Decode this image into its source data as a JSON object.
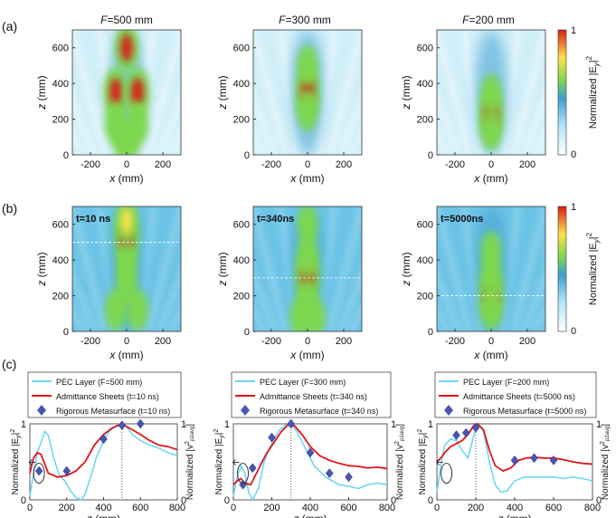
{
  "figure": {
    "row_labels": [
      "(a)",
      "(b)",
      "(c)"
    ],
    "focal_titles": [
      {
        "italic": "F",
        "rest": "=500 mm"
      },
      {
        "italic": "F",
        "rest": "=300 mm"
      },
      {
        "italic": "F",
        "rest": "=200 mm"
      }
    ],
    "colorbar": {
      "label": "Normalized |E",
      "label_sub": "y",
      "label_tail": "|",
      "label_sup": "2",
      "ticks": [
        "1",
        "0"
      ]
    },
    "colors": {
      "hot": "#d81c13",
      "warm": "#ffe14a",
      "mid": "#7ed84e",
      "cool": "#3c9fd1",
      "cold": "#ffffff",
      "pec": "#6fd6f0",
      "sheet": "#e0141b",
      "meta": "#4a55b3"
    }
  },
  "chart_data": [
    {
      "type": "heatmap",
      "id": "a1",
      "title": "F=500 mm",
      "xlabel": "x (mm)",
      "ylabel": "z (mm)",
      "xticks": [
        -200,
        0,
        200
      ],
      "yticks": [
        0,
        200,
        400,
        600
      ],
      "xlim": [
        -300,
        300
      ],
      "ylim": [
        0,
        700
      ],
      "hotspots": [
        [
          -60,
          350,
          1.0
        ],
        [
          60,
          350,
          1.0
        ],
        [
          0,
          600,
          0.9
        ],
        [
          -60,
          180,
          0.6
        ],
        [
          60,
          180,
          0.6
        ],
        [
          -20,
          90,
          0.5
        ],
        [
          20,
          90,
          0.5
        ]
      ]
    },
    {
      "type": "heatmap",
      "id": "a2",
      "title": "F=300 mm",
      "xlabel": "x (mm)",
      "ylabel": "z (mm)",
      "xticks": [
        -200,
        0,
        200
      ],
      "yticks": [
        0,
        200,
        400,
        600
      ],
      "xlim": [
        -300,
        300
      ],
      "ylim": [
        0,
        700
      ],
      "hotspots": [
        [
          0,
          360,
          1.0
        ],
        [
          0,
          250,
          0.55
        ],
        [
          0,
          500,
          0.5
        ]
      ]
    },
    {
      "type": "heatmap",
      "id": "a3",
      "title": "F=200 mm",
      "xlabel": "x (mm)",
      "ylabel": "z (mm)",
      "xticks": [
        -200,
        0,
        200
      ],
      "yticks": [
        0,
        200,
        400,
        600
      ],
      "xlim": [
        -300,
        300
      ],
      "ylim": [
        0,
        700
      ],
      "hotspots": [
        [
          0,
          230,
          1.0
        ],
        [
          0,
          140,
          0.5
        ],
        [
          0,
          340,
          0.45
        ]
      ]
    },
    {
      "type": "heatmap",
      "id": "b1",
      "time_label": "t=10 ns",
      "xlabel": "x (mm)",
      "ylabel": "z (mm)",
      "xticks": [
        -200,
        0,
        200
      ],
      "yticks": [
        0,
        200,
        400,
        600
      ],
      "xlim": [
        -300,
        300
      ],
      "ylim": [
        0,
        700
      ],
      "focus_line": 500,
      "hotspots": [
        [
          0,
          520,
          1.0
        ],
        [
          0,
          620,
          0.8
        ],
        [
          0,
          380,
          0.55
        ],
        [
          -60,
          120,
          0.55
        ],
        [
          60,
          120,
          0.55
        ],
        [
          0,
          250,
          0.5
        ]
      ]
    },
    {
      "type": "heatmap",
      "id": "b2",
      "time_label": "t=340ns",
      "xlabel": "x (mm)",
      "ylabel": "z (mm)",
      "xticks": [
        -200,
        0,
        200
      ],
      "yticks": [
        0,
        200,
        400,
        600
      ],
      "xlim": [
        -300,
        300
      ],
      "ylim": [
        0,
        700
      ],
      "focus_line": 300,
      "hotspots": [
        [
          0,
          310,
          1.0
        ],
        [
          0,
          420,
          0.65
        ],
        [
          0,
          180,
          0.55
        ],
        [
          0,
          600,
          0.45
        ],
        [
          -40,
          80,
          0.45
        ],
        [
          40,
          80,
          0.45
        ]
      ]
    },
    {
      "type": "heatmap",
      "id": "b3",
      "time_label": "t=5000ns",
      "xlabel": "x (mm)",
      "ylabel": "z (mm)",
      "xticks": [
        -200,
        0,
        200
      ],
      "yticks": [
        0,
        200,
        400,
        600
      ],
      "xlim": [
        -300,
        300
      ],
      "ylim": [
        0,
        700
      ],
      "focus_line": 200,
      "hotspots": [
        [
          0,
          200,
          0.9
        ],
        [
          0,
          300,
          0.6
        ],
        [
          0,
          120,
          0.5
        ],
        [
          0,
          450,
          0.45
        ]
      ]
    },
    {
      "type": "line",
      "id": "c1",
      "xlabel": "z (mm)",
      "ylabel_left": "Normalized |E",
      "ylabel_right": "Normalized [v",
      "xticks": [
        0,
        200,
        400,
        600,
        800
      ],
      "xlim": [
        0,
        800
      ],
      "ylim": [
        0,
        1
      ],
      "focus": 500,
      "legend": [
        "PEC Layer (F=500 mm)",
        "Admittance Sheets (t=10 ns)",
        "Rigorous Metasurface (t=10 ns)"
      ],
      "series": [
        {
          "name": "PEC Layer",
          "x": [
            0,
            20,
            40,
            60,
            80,
            100,
            130,
            160,
            190,
            220,
            250,
            280,
            300,
            330,
            360,
            400,
            430,
            460,
            490,
            520,
            560,
            600,
            650,
            700,
            750,
            800
          ],
          "y": [
            0.05,
            0.35,
            0.62,
            0.75,
            0.9,
            0.85,
            0.55,
            0.32,
            0.25,
            0.12,
            0.03,
            0.0,
            0.08,
            0.3,
            0.55,
            0.78,
            0.9,
            0.96,
            1.0,
            0.97,
            0.85,
            0.78,
            0.72,
            0.68,
            0.62,
            0.58
          ]
        },
        {
          "name": "Admittance Sheets",
          "x": [
            0,
            20,
            40,
            60,
            80,
            100,
            150,
            200,
            250,
            300,
            350,
            400,
            450,
            500,
            550,
            600,
            650,
            700,
            750,
            800
          ],
          "y": [
            0.35,
            0.55,
            0.62,
            0.6,
            0.48,
            0.35,
            0.3,
            0.32,
            0.38,
            0.5,
            0.72,
            0.86,
            0.95,
            1.0,
            0.93,
            0.86,
            0.78,
            0.72,
            0.7,
            0.66
          ]
        },
        {
          "name": "Rigorous Metasurface",
          "x": [
            50,
            200,
            400,
            500,
            600
          ],
          "y": [
            0.38,
            0.38,
            0.8,
            0.98,
            1.0
          ]
        }
      ]
    },
    {
      "type": "line",
      "id": "c2",
      "xlabel": "z (mm)",
      "ylabel_left": "Normalized |E",
      "ylabel_right": "Normalized [v",
      "xticks": [
        0,
        200,
        400,
        600,
        800
      ],
      "xlim": [
        0,
        800
      ],
      "ylim": [
        0,
        1
      ],
      "focus": 300,
      "legend": [
        "PEC Layer (F=300 mm)",
        "Admittance Sheets (t=340 ns)",
        "Rigorous Metasurface (t=340 ns)"
      ],
      "series": [
        {
          "name": "PEC Layer",
          "x": [
            0,
            20,
            40,
            60,
            80,
            100,
            130,
            160,
            200,
            240,
            270,
            300,
            330,
            370,
            420,
            480,
            550,
            600,
            650,
            700,
            750,
            800
          ],
          "y": [
            0.05,
            0.3,
            0.45,
            0.35,
            0.1,
            0.0,
            0.15,
            0.5,
            0.75,
            0.92,
            0.98,
            1.0,
            0.9,
            0.7,
            0.45,
            0.3,
            0.2,
            0.18,
            0.15,
            0.2,
            0.22,
            0.2
          ]
        },
        {
          "name": "Admittance Sheets",
          "x": [
            0,
            20,
            40,
            60,
            90,
            130,
            170,
            210,
            250,
            290,
            320,
            360,
            400,
            450,
            500,
            550,
            600,
            650,
            700,
            750,
            800
          ],
          "y": [
            0.2,
            0.25,
            0.28,
            0.22,
            0.2,
            0.4,
            0.6,
            0.75,
            0.9,
            1.0,
            0.97,
            0.85,
            0.7,
            0.58,
            0.52,
            0.48,
            0.45,
            0.44,
            0.42,
            0.43,
            0.41
          ]
        },
        {
          "name": "Rigorous Metasurface",
          "x": [
            50,
            100,
            200,
            300,
            400,
            500,
            600
          ],
          "y": [
            0.2,
            0.42,
            0.82,
            1.0,
            0.62,
            0.35,
            0.3
          ]
        }
      ]
    },
    {
      "type": "line",
      "id": "c3",
      "xlabel": "z (mm)",
      "ylabel_left": "Normalized |E",
      "ylabel_right": "Normalized [v",
      "xticks": [
        0,
        200,
        400,
        600,
        800
      ],
      "xlim": [
        0,
        800
      ],
      "ylim": [
        0,
        1
      ],
      "focus": 200,
      "legend": [
        "PEC Layer (F=200 mm)",
        "Admittance Sheets (t=5000 ns)",
        "Rigorous Metasurface (t=5000 ns)"
      ],
      "series": [
        {
          "name": "PEC Layer",
          "x": [
            0,
            20,
            40,
            70,
            100,
            130,
            160,
            190,
            210,
            240,
            270,
            300,
            330,
            360,
            400,
            450,
            500,
            550,
            600,
            650,
            700,
            750,
            800
          ],
          "y": [
            0.1,
            0.45,
            0.72,
            0.8,
            0.78,
            0.65,
            0.55,
            0.85,
            1.0,
            0.9,
            0.5,
            0.2,
            0.1,
            0.12,
            0.25,
            0.3,
            0.3,
            0.3,
            0.3,
            0.28,
            0.3,
            0.28,
            0.25
          ]
        },
        {
          "name": "Admittance Sheets",
          "x": [
            0,
            20,
            40,
            70,
            100,
            130,
            160,
            190,
            210,
            240,
            270,
            300,
            340,
            380,
            420,
            460,
            500,
            550,
            600,
            650,
            700,
            750,
            800
          ],
          "y": [
            0.5,
            0.55,
            0.62,
            0.7,
            0.74,
            0.78,
            0.86,
            0.98,
            1.0,
            0.92,
            0.65,
            0.45,
            0.38,
            0.42,
            0.52,
            0.55,
            0.56,
            0.55,
            0.55,
            0.53,
            0.5,
            0.48,
            0.47
          ]
        },
        {
          "name": "Rigorous Metasurface",
          "x": [
            100,
            150,
            200,
            400,
            500,
            600
          ],
          "y": [
            0.85,
            0.88,
            0.95,
            0.52,
            0.55,
            0.52
          ]
        }
      ]
    }
  ]
}
